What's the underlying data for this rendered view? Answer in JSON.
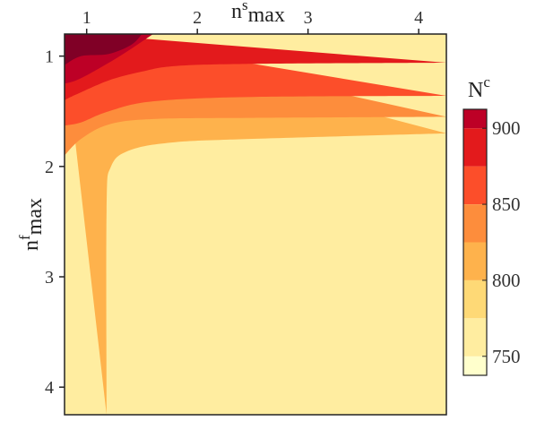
{
  "chart_data": {
    "type": "heatmap",
    "subtype": "filled-contour",
    "xlabel": {
      "base": "n",
      "sup": "s",
      "sub": "max"
    },
    "ylabel": {
      "base": "n",
      "sup": "f",
      "sub": "max"
    },
    "x_axis_position": "top",
    "y_axis_inverted": true,
    "xlim": [
      0.8,
      4.25
    ],
    "ylim": [
      0.8,
      4.25
    ],
    "xticks": [
      1,
      2,
      3,
      4
    ],
    "xtick_labels": [
      "1",
      "2",
      "3",
      "4"
    ],
    "yticks": [
      1,
      2,
      3,
      4
    ],
    "ytick_labels": [
      "1",
      "2",
      "3",
      "4"
    ],
    "colorbar": {
      "title": {
        "base": "N",
        "sup": "c"
      },
      "range": [
        737.5,
        912.5
      ],
      "levels": [
        737.5,
        750,
        775,
        800,
        825,
        850,
        875,
        900,
        912.5
      ],
      "colors": [
        "#ffffcc",
        "#ffeda0",
        "#fed976",
        "#feb24c",
        "#fd8d3c",
        "#fc4e2a",
        "#e31a1c",
        "#bd0026",
        "#800026"
      ],
      "ticks": [
        750,
        800,
        850,
        900
      ],
      "tick_labels": [
        "750",
        "800",
        "850",
        "900"
      ],
      "placement": "right"
    },
    "grid": false,
    "region_boundaries": [
      {
        "separates": [
          775,
          800
        ],
        "points": [
          [
            1.18,
            4.25
          ],
          [
            1.18,
            2.4
          ],
          [
            1.22,
            2.0
          ],
          [
            1.4,
            1.85
          ],
          [
            1.8,
            1.78
          ],
          [
            2.5,
            1.75
          ],
          [
            4.25,
            1.7
          ]
        ]
      },
      {
        "separates": [
          800,
          825
        ],
        "points": [
          [
            0.8,
            1.9
          ],
          [
            0.95,
            1.75
          ],
          [
            1.2,
            1.62
          ],
          [
            1.6,
            1.57
          ],
          [
            2.5,
            1.56
          ],
          [
            4.25,
            1.55
          ]
        ]
      },
      {
        "separates": [
          825,
          850
        ],
        "points": [
          [
            0.8,
            1.63
          ],
          [
            0.95,
            1.6
          ],
          [
            1.2,
            1.5
          ],
          [
            1.6,
            1.41
          ],
          [
            2.5,
            1.37
          ],
          [
            4.25,
            1.36
          ]
        ]
      },
      {
        "separates": [
          850,
          875
        ],
        "points": [
          [
            0.8,
            1.4
          ],
          [
            0.9,
            1.35
          ],
          [
            1.2,
            1.22
          ],
          [
            1.5,
            1.14
          ],
          [
            1.8,
            1.09
          ],
          [
            2.5,
            1.07
          ],
          [
            4.25,
            1.06
          ]
        ]
      },
      {
        "separates": [
          875,
          900
        ],
        "points": [
          [
            0.8,
            1.25
          ],
          [
            0.95,
            1.2
          ],
          [
            1.3,
            1.0
          ],
          [
            1.6,
            0.8
          ]
        ]
      },
      {
        "separates": [
          900,
          912.5
        ],
        "points": [
          [
            0.8,
            1.08
          ],
          [
            0.95,
            1.0
          ],
          [
            1.2,
            0.98
          ],
          [
            1.4,
            0.9
          ],
          [
            1.5,
            0.8
          ]
        ]
      }
    ]
  }
}
